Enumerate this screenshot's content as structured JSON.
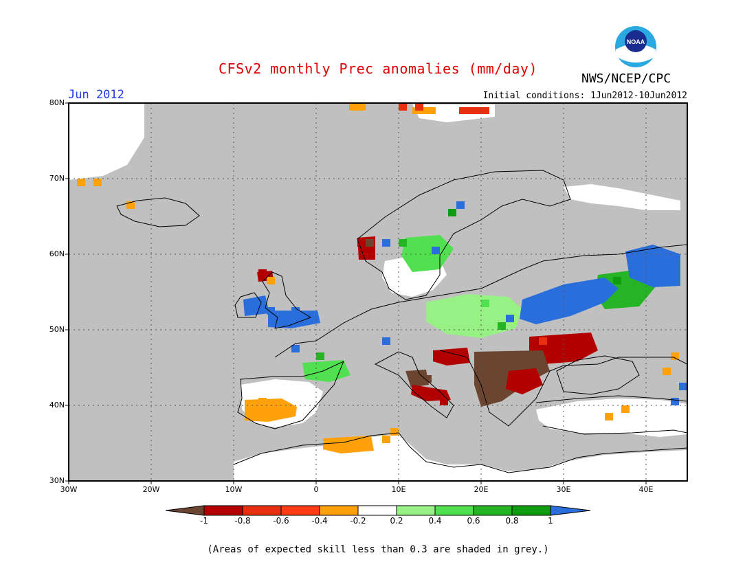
{
  "title": "CFSv2 monthly Prec anomalies (mm/day)",
  "organization": "NWS/NCEP/CPC",
  "logo_text": "NOAA",
  "period": "Jun 2012",
  "initial_conditions": "Initial conditions: 1Jun2012-10Jun2012",
  "footnote": "(Areas of expected skill less than 0.3 are shaded in grey.)",
  "map": {
    "lon_range": [
      -30,
      45
    ],
    "lat_range": [
      30,
      80
    ],
    "grid": true,
    "lat_labels": [
      "80N",
      "70N",
      "60N",
      "50N",
      "40N",
      "30N"
    ],
    "lon_labels": [
      "30W",
      "20W",
      "10W",
      "0",
      "10E",
      "20E",
      "30E",
      "40E"
    ]
  },
  "colorbar": {
    "labels": [
      "-1",
      "-0.8",
      "-0.6",
      "-0.4",
      "-0.2",
      "0.2",
      "0.4",
      "0.6",
      "0.8",
      "1"
    ],
    "colors": [
      "#6b4530",
      "#b30000",
      "#e83010",
      "#ff3c14",
      "#ffa10a",
      "#ffffff",
      "#97f184",
      "#50e050",
      "#24b424",
      "#109c10",
      "#2a6edc"
    ]
  },
  "colors": {
    "title": "#e00000",
    "period": "#1e3ce0",
    "sea_grey": "#c0c0c0"
  },
  "anomaly_cells": [
    {
      "lon": 4,
      "lat": 79,
      "v": -0.4
    },
    {
      "lon": 5,
      "lat": 79,
      "v": -0.4
    },
    {
      "lon": 10,
      "lat": 79,
      "v": -0.6
    },
    {
      "lon": 12,
      "lat": 79,
      "v": -0.6
    },
    {
      "lon": -29,
      "lat": 69,
      "v": -0.4
    },
    {
      "lon": -27,
      "lat": 69,
      "v": -0.4
    },
    {
      "lon": -23,
      "lat": 66,
      "v": -0.4
    },
    {
      "lon": 5,
      "lat": 61,
      "v": -0.8
    },
    {
      "lon": 6,
      "lat": 61,
      "v": -1
    },
    {
      "lon": 8,
      "lat": 61,
      "v": 1
    },
    {
      "lon": 10,
      "lat": 61,
      "v": 0.6
    },
    {
      "lon": 14,
      "lat": 60,
      "v": 1
    },
    {
      "lon": 16,
      "lat": 65,
      "v": 0.8
    },
    {
      "lon": 17,
      "lat": 66,
      "v": 1
    },
    {
      "lon": -7,
      "lat": 57,
      "v": -0.8
    },
    {
      "lon": -6,
      "lat": 56,
      "v": -0.4
    },
    {
      "lon": -8,
      "lat": 53,
      "v": 1
    },
    {
      "lon": -6,
      "lat": 52,
      "v": 1
    },
    {
      "lon": -3,
      "lat": 52,
      "v": 1
    },
    {
      "lon": -1,
      "lat": 51,
      "v": 1
    },
    {
      "lon": -3,
      "lat": 47,
      "v": 1
    },
    {
      "lon": 0,
      "lat": 46,
      "v": 0.6
    },
    {
      "lon": 8,
      "lat": 48,
      "v": 1
    },
    {
      "lon": 23,
      "lat": 51,
      "v": 1
    },
    {
      "lon": 27,
      "lat": 52,
      "v": 1
    },
    {
      "lon": 30,
      "lat": 53,
      "v": 1
    },
    {
      "lon": 34,
      "lat": 55,
      "v": 1
    },
    {
      "lon": 39,
      "lat": 58,
      "v": 1
    },
    {
      "lon": 42,
      "lat": 58,
      "v": 1
    },
    {
      "lon": 36,
      "lat": 56,
      "v": 0.8
    },
    {
      "lon": 20,
      "lat": 53,
      "v": 0.4
    },
    {
      "lon": 22,
      "lat": 50,
      "v": 0.6
    },
    {
      "lon": 22,
      "lat": 46,
      "v": -1
    },
    {
      "lon": 24,
      "lat": 45,
      "v": -1
    },
    {
      "lon": 21,
      "lat": 43,
      "v": -1
    },
    {
      "lon": 20,
      "lat": 41,
      "v": -1
    },
    {
      "lon": 26,
      "lat": 43,
      "v": -0.8
    },
    {
      "lon": 28,
      "lat": 46,
      "v": -0.8
    },
    {
      "lon": 30,
      "lat": 47,
      "v": -0.8
    },
    {
      "lon": 27,
      "lat": 48,
      "v": -0.6
    },
    {
      "lon": 16,
      "lat": 46,
      "v": -0.8
    },
    {
      "lon": 13,
      "lat": 43,
      "v": -1
    },
    {
      "lon": 14,
      "lat": 41,
      "v": -0.8
    },
    {
      "lon": 15,
      "lat": 40,
      "v": -0.8
    },
    {
      "lon": -7,
      "lat": 40,
      "v": -0.4
    },
    {
      "lon": -5,
      "lat": 39,
      "v": -0.4
    },
    {
      "lon": 2,
      "lat": 34,
      "v": -0.4
    },
    {
      "lon": 5,
      "lat": 34,
      "v": -0.4
    },
    {
      "lon": 8,
      "lat": 35,
      "v": -0.4
    },
    {
      "lon": 9,
      "lat": 36,
      "v": -0.4
    },
    {
      "lon": 35,
      "lat": 38,
      "v": -0.4
    },
    {
      "lon": 37,
      "lat": 39,
      "v": -0.4
    },
    {
      "lon": 42,
      "lat": 44,
      "v": -0.4
    },
    {
      "lon": 43,
      "lat": 46,
      "v": -0.4
    },
    {
      "lon": 43,
      "lat": 40,
      "v": 1
    },
    {
      "lon": 44,
      "lat": 42,
      "v": 1
    }
  ]
}
